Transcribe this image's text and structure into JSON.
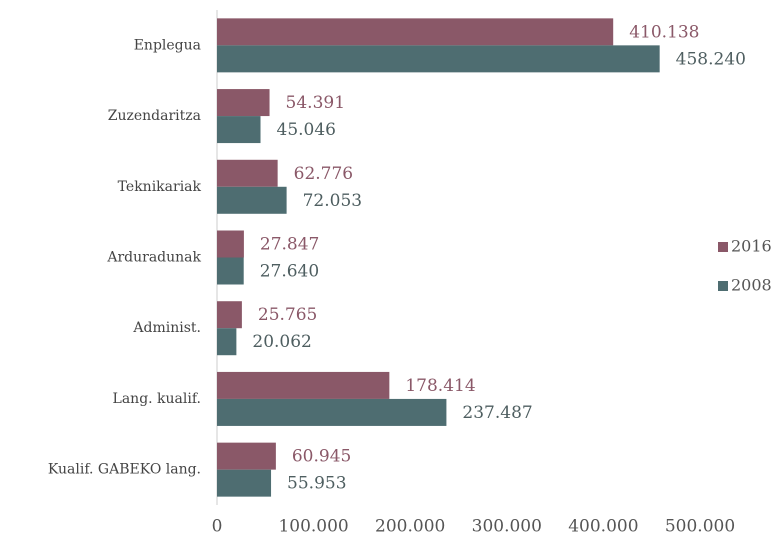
{
  "chart_data": {
    "type": "bar",
    "orientation": "horizontal",
    "categories": [
      "Enplegua",
      "Zuzendaritza",
      "Teknikariak",
      "Arduradunak",
      "Administ.",
      "Lang. kualif.",
      "Kualif. GABEKO lang."
    ],
    "series": [
      {
        "name": "2016",
        "color": "#8a5868",
        "values": [
          410138,
          54391,
          62776,
          27847,
          25765,
          178414,
          60945
        ],
        "value_labels": [
          "410.138",
          "54.391",
          "62.776",
          "27.847",
          "25.765",
          "178.414",
          "60.945"
        ]
      },
      {
        "name": "2008",
        "color": "#4e6d71",
        "values": [
          458240,
          45046,
          72053,
          27640,
          20062,
          237487,
          55953
        ],
        "value_labels": [
          "458.240",
          "45.046",
          "72.053",
          "27.640",
          "20.062",
          "237.487",
          "55.953"
        ]
      }
    ],
    "xlim": [
      0,
      500000
    ],
    "xticks": [
      0,
      {
        "value": 100000,
        "label": "100.000"
      },
      {
        "value": 200000,
        "label": "200.000"
      },
      {
        "value": 300000,
        "label": "300.000"
      },
      {
        "value": 400000,
        "label": "400.000"
      },
      {
        "value": 500000,
        "label": "500.000"
      }
    ],
    "legend": "right"
  }
}
